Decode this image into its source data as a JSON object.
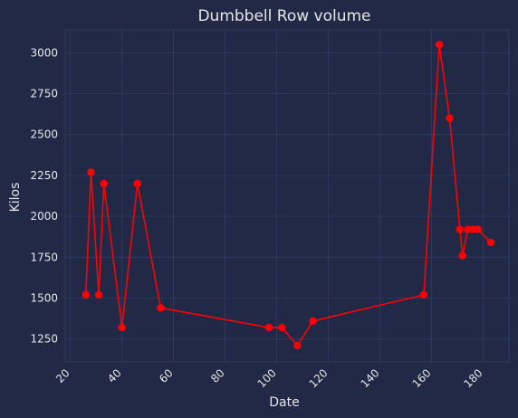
{
  "chart_data": {
    "type": "line",
    "title": "Dumbbell Row volume",
    "xlabel": "Date",
    "ylabel": "Kilos",
    "xlim": [
      18,
      190
    ],
    "ylim": [
      1110,
      3140
    ],
    "x_ticks": [
      20,
      40,
      60,
      80,
      100,
      120,
      140,
      160,
      180
    ],
    "y_ticks": [
      1250,
      1500,
      1750,
      2000,
      2250,
      2500,
      2750,
      3000
    ],
    "grid": true,
    "line_color": "#ff0000",
    "background_color": "#212946",
    "series": [
      {
        "x": [
          26,
          28,
          31,
          33,
          40,
          46,
          55,
          97,
          102,
          108,
          114,
          157,
          163,
          167,
          171,
          172,
          174,
          176,
          178,
          183
        ],
        "y": [
          1520,
          2270,
          1520,
          2200,
          1320,
          2200,
          1440,
          1320,
          1320,
          1210,
          1360,
          1520,
          3050,
          2600,
          1920,
          1760,
          1920,
          1920,
          1920,
          1840
        ]
      }
    ]
  }
}
